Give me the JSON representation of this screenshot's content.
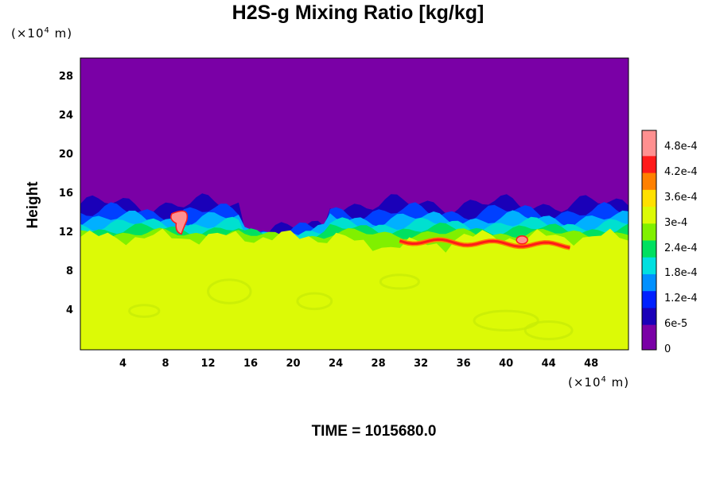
{
  "chart_data": {
    "type": "heatmap",
    "title": "H2S-g Mixing Ratio [kg/kg]",
    "ylabel": "Height",
    "y_unit_prefix": "(×10",
    "y_unit_exp": "4",
    "y_unit_suffix": " m)",
    "x_unit_prefix": "(×10",
    "x_unit_exp": "4",
    "x_unit_suffix": " m)",
    "xlim": [
      0,
      51.5
    ],
    "ylim": [
      0,
      30
    ],
    "x_ticks": [
      "4",
      "8",
      "12",
      "16",
      "20",
      "24",
      "28",
      "32",
      "36",
      "40",
      "44",
      "48"
    ],
    "y_ticks": [
      "4",
      "8",
      "12",
      "16",
      "20",
      "24",
      "28"
    ],
    "colorbar_ticks": [
      "0",
      "6e-5",
      "1.2e-4",
      "1.8e-4",
      "2.4e-4",
      "3e-4",
      "3.6e-4",
      "4.2e-4",
      "4.8e-4"
    ],
    "colorbar_range": [
      0,
      0.00052
    ],
    "colors": {
      "background_field": "#7a00a6",
      "lower_field": "#dcfa06",
      "colormap": [
        "#7a00a6",
        "#1a00b8",
        "#0020ff",
        "#0090ff",
        "#00e0e0",
        "#00e060",
        "#80f000",
        "#dcfa06",
        "#ffe000",
        "#ff8000",
        "#ff1a1a",
        "#ff9090"
      ]
    },
    "field_description": "near-zero above ~14e4 m, ~3.4e-4 kg/kg below ~11e4 m, mixed layer with peaks near x=9-10, y=13 and x=30-46, y=11"
  },
  "footer": {
    "time_label": "TIME = 1015680.0"
  }
}
